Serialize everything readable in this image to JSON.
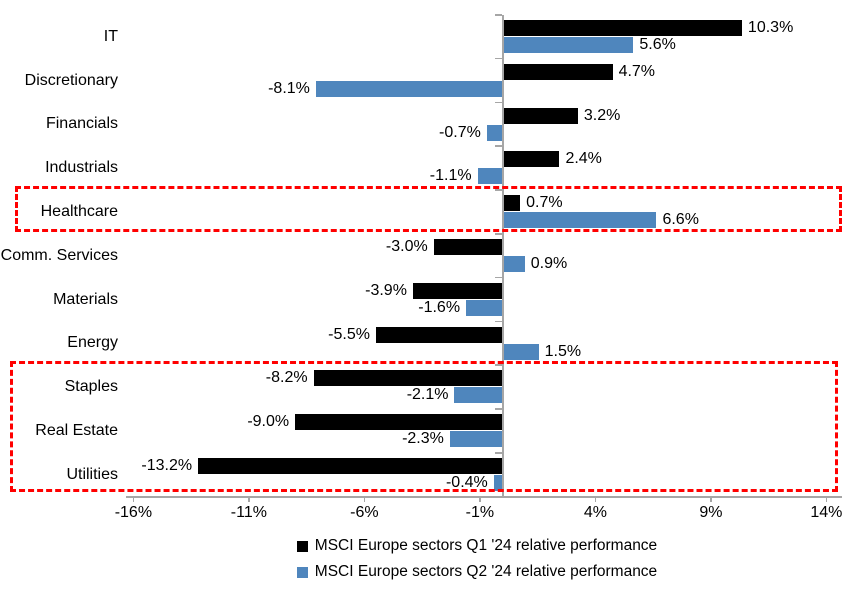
{
  "chart_data": {
    "type": "bar",
    "orientation": "horizontal",
    "title": "",
    "categories": [
      "IT",
      "Discretionary",
      "Financials",
      "Industrials",
      "Healthcare",
      "Comm. Services",
      "Materials",
      "Energy",
      "Staples",
      "Real Estate",
      "Utilities"
    ],
    "series": [
      {
        "name": "MSCI Europe sectors Q1 '24 relative performance",
        "color": "#000000",
        "values": [
          10.3,
          4.7,
          3.2,
          2.4,
          0.7,
          -3.0,
          -3.9,
          -5.5,
          -8.2,
          -9.0,
          -13.2
        ]
      },
      {
        "name": "MSCI Europe sectors Q2 '24 relative performance",
        "color": "#4F86BD",
        "values": [
          5.6,
          -8.1,
          -0.7,
          -1.1,
          6.6,
          0.9,
          -1.6,
          1.5,
          -2.1,
          -2.3,
          -0.4
        ]
      }
    ],
    "data_labels": [
      [
        "10.3%",
        "4.7%",
        "3.2%",
        "2.4%",
        "0.7%",
        "-3.0%",
        "-3.9%",
        "-5.5%",
        "-8.2%",
        "-9.0%",
        "-13.2%"
      ],
      [
        "5.6%",
        "-8.1%",
        "-0.7%",
        "-1.1%",
        "6.6%",
        "0.9%",
        "-1.6%",
        "1.5%",
        "-2.1%",
        "-2.3%",
        "-0.4%"
      ]
    ],
    "x_tick_labels": [
      "-16%",
      "-11%",
      "-6%",
      "-1%",
      "4%",
      "9%",
      "14%"
    ],
    "x_tick_values": [
      -16,
      -11,
      -6,
      -1,
      4,
      9,
      14
    ],
    "xlim": [
      -16.3,
      14.7
    ],
    "grid": false,
    "legend_position": "bottom",
    "axis_color": "#A6A6A6",
    "highlight_color": "#FF0000",
    "highlight_boxes": [
      {
        "first_category": "Healthcare",
        "last_category": "Healthcare"
      },
      {
        "first_category": "Staples",
        "last_category": "Utilities"
      }
    ]
  }
}
